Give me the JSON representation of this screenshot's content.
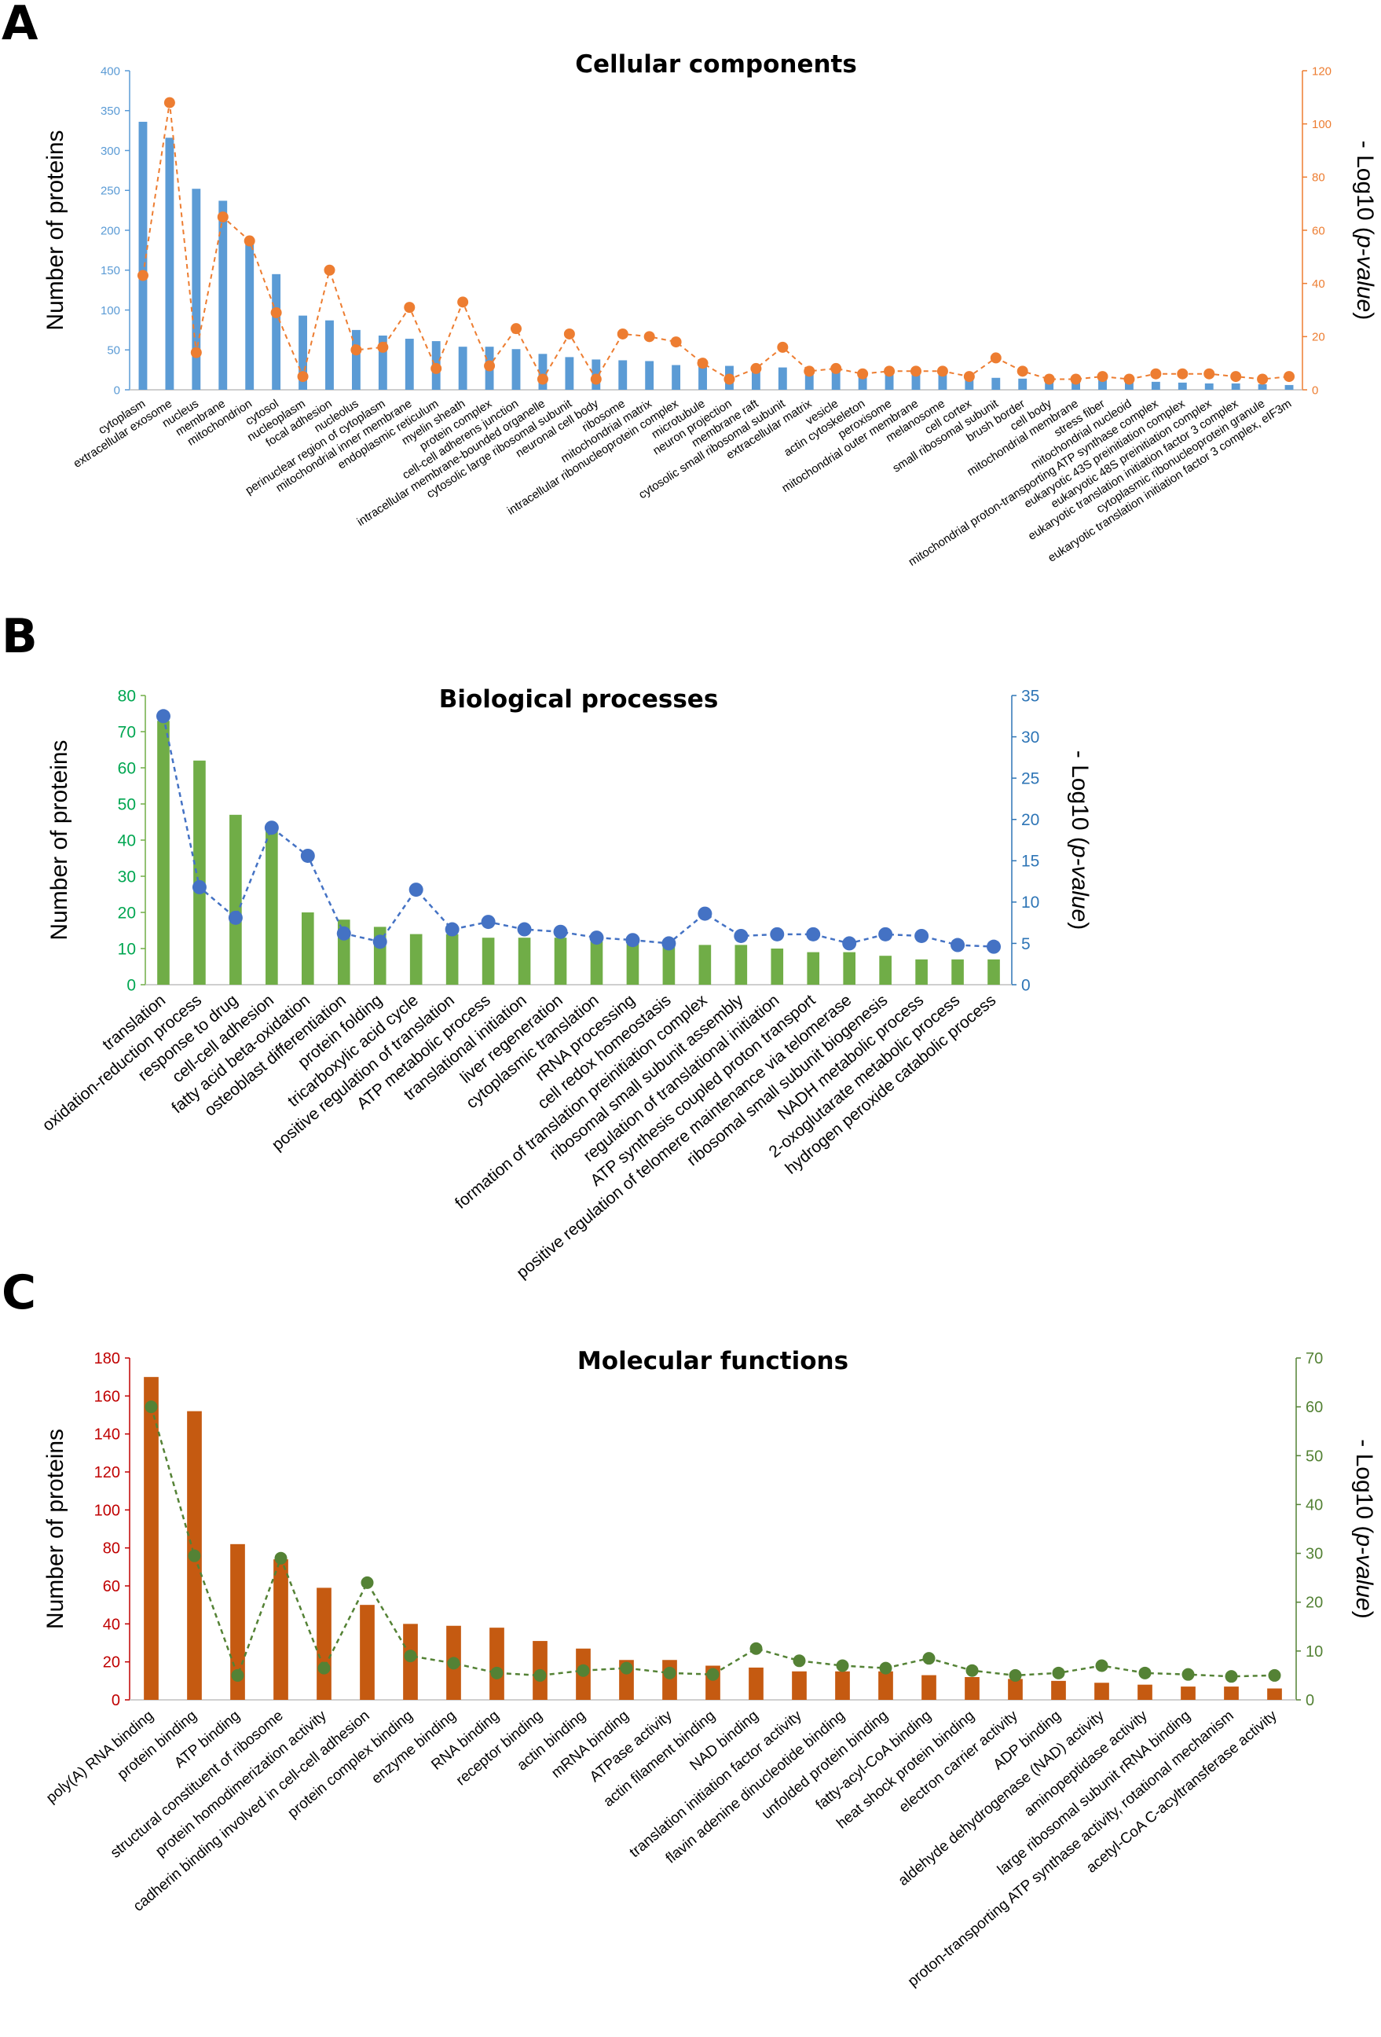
{
  "figure": {
    "panels": [
      {
        "letter": "A",
        "chart_index": 0,
        "colors": {
          "bar": "#5b9bd5",
          "line": "#ed7d31",
          "left_axis": "#5b9bd5",
          "right_axis": "#ed7d31",
          "left_tick": "#5b9bd5",
          "right_tick": "#ed7d31"
        }
      },
      {
        "letter": "B",
        "chart_index": 1,
        "colors": {
          "bar": "#70ad47",
          "line": "#4472c4",
          "left_axis": "#70ad47",
          "right_axis": "#2e75b6",
          "left_tick": "#00a651",
          "right_tick": "#2e75b6"
        }
      },
      {
        "letter": "C",
        "chart_index": 2,
        "colors": {
          "bar": "#c55a11",
          "line": "#548235",
          "left_axis": "#c00000",
          "right_axis": "#548235",
          "left_tick": "#c00000",
          "right_tick": "#548235"
        }
      }
    ]
  },
  "chart_data": [
    {
      "type": "bar",
      "title": "Cellular components",
      "ylabel": "Number of proteins",
      "y2label": "- Log10 (p-value)",
      "ylim": [
        0,
        400
      ],
      "yticks": [
        0,
        50,
        100,
        150,
        200,
        250,
        300,
        350,
        400
      ],
      "y2lim": [
        0,
        120
      ],
      "y2ticks": [
        0,
        20,
        40,
        60,
        80,
        100,
        120
      ],
      "categories": [
        "cytoplasm",
        "extracellular exosome",
        "nucleus",
        "membrane",
        "mitochondrion",
        "cytosol",
        "nucleoplasm",
        "focal adhesion",
        "nucleolus",
        "perinuclear region of cytoplasm",
        "mitochondrial inner membrane",
        "endoplasmic reticulum",
        "myelin sheath",
        "protein complex",
        "cell-cell adherens junction",
        "intracellular membrane-bounded organelle",
        "cytosolic large ribosomal subunit",
        "neuronal cell body",
        "ribosome",
        "mitochondrial matrix",
        "intracellular ribonucleoprotein complex",
        "microtubule",
        "neuron projection",
        "membrane raft",
        "cytosolic small ribosomal subunit",
        "extracellular matrix",
        "vesicle",
        "actin cytoskeleton",
        "peroxisome",
        "mitochondrial outer membrane",
        "melanosome",
        "cell cortex",
        "small ribosomal subunit",
        "brush border",
        "cell body",
        "mitochondrial membrane",
        "stress fiber",
        "mitochondrial nucleoid",
        "mitochondrial proton-transporting ATP synthase complex",
        "eukaryotic 43S preinitiation complex",
        "eukaryotic 48S preinitiation complex",
        "eukaryotic translation initiation factor 3 complex",
        "cytoplasmic ribonucleoprotein granule",
        "eukaryotic translation initiation factor 3 complex, eIF3m"
      ],
      "series": [
        {
          "name": "Number of proteins",
          "axis": "left",
          "kind": "bar",
          "values": [
            336,
            316,
            252,
            237,
            186,
            145,
            93,
            87,
            75,
            68,
            64,
            61,
            54,
            54,
            51,
            45,
            41,
            38,
            37,
            36,
            31,
            30,
            30,
            29,
            28,
            24,
            23,
            22,
            21,
            20,
            19,
            17,
            15,
            14,
            13,
            13,
            13,
            11,
            10,
            9,
            8,
            8,
            7,
            6
          ]
        },
        {
          "name": "-Log10 (p-value)",
          "axis": "right",
          "kind": "line",
          "values": [
            43,
            108,
            14,
            65,
            56,
            29,
            5,
            45,
            15,
            16,
            31,
            8,
            33,
            9,
            23,
            4,
            21,
            4,
            21,
            20,
            18,
            10,
            4,
            8,
            16,
            7,
            8,
            6,
            7,
            7,
            7,
            5,
            12,
            7,
            4,
            4,
            5,
            4,
            6,
            6,
            6,
            5,
            4,
            5
          ]
        }
      ]
    },
    {
      "type": "bar",
      "title": "Biological processes",
      "ylabel": "Number of proteins",
      "y2label": "- Log10 (p-value)",
      "ylim": [
        0,
        80
      ],
      "yticks": [
        0,
        10,
        20,
        30,
        40,
        50,
        60,
        70,
        80
      ],
      "y2lim": [
        0,
        35
      ],
      "y2ticks": [
        0,
        5,
        10,
        15,
        20,
        25,
        30,
        35
      ],
      "categories": [
        "translation",
        "oxidation-reduction process",
        "response to drug",
        "cell-cell adhesion",
        "fatty acid beta-oxidation",
        "osteoblast differentiation",
        "protein folding",
        "tricarboxylic acid cycle",
        "positive regulation of translation",
        "ATP metabolic process",
        "translational initiation",
        "liver regeneration",
        "cytoplasmic translation",
        "rRNA processing",
        "cell redox homeostasis",
        "formation of translation preinitiation complex",
        "ribosomal small subunit assembly",
        "regulation of translational initiation",
        "ATP synthesis coupled proton transport",
        "positive regulation of telomere maintenance via telomerase",
        "ribosomal small subunit biogenesis",
        "NADH metabolic process",
        "2-oxoglutarate metabolic process",
        "hydrogen peroxide catabolic process"
      ],
      "series": [
        {
          "name": "Number of proteins",
          "axis": "left",
          "kind": "bar",
          "values": [
            73,
            62,
            47,
            43,
            20,
            18,
            16,
            14,
            14,
            13,
            13,
            13,
            12,
            12,
            11,
            11,
            11,
            10,
            9,
            9,
            8,
            7,
            7,
            7
          ]
        },
        {
          "name": "-Log10 (p-value)",
          "axis": "right",
          "kind": "line",
          "values": [
            32.5,
            11.8,
            8.1,
            19,
            15.6,
            6.2,
            5.2,
            11.5,
            6.7,
            7.6,
            6.7,
            6.4,
            5.7,
            5.4,
            5,
            8.6,
            5.9,
            6.1,
            6.1,
            5,
            6.1,
            5.9,
            4.8,
            4.6
          ]
        }
      ]
    },
    {
      "type": "bar",
      "title": "Molecular functions",
      "ylabel": "Number of proteins",
      "y2label": "- Log10 (p-value)",
      "ylim": [
        0,
        180
      ],
      "yticks": [
        0,
        20,
        40,
        60,
        80,
        100,
        120,
        140,
        160,
        180
      ],
      "y2lim": [
        0,
        70
      ],
      "y2ticks": [
        0,
        10,
        20,
        30,
        40,
        50,
        60,
        70
      ],
      "categories": [
        "poly(A) RNA binding",
        "protein binding",
        "ATP binding",
        "structural constituent of ribosome",
        "protein homodimerization activity",
        "cadherin binding involved in cell-cell adhesion",
        "protein complex binding",
        "enzyme binding",
        "RNA binding",
        "receptor binding",
        "actin binding",
        "mRNA binding",
        "ATPase activity",
        "actin filament binding",
        "NAD binding",
        "translation initiation factor activity",
        "flavin adenine dinucleotide binding",
        "unfolded protein binding",
        "fatty-acyl-CoA binding",
        "heat shock protein binding",
        "electron carrier activity",
        "ADP binding",
        "aldehyde dehydrogenase (NAD) activity",
        "aminopeptidase activity",
        "large ribosomal subunit rRNA binding",
        "proton-transporting ATP synthase activity, rotational mechanism",
        "acetyl-CoA C-acyltransferase activity"
      ],
      "series": [
        {
          "name": "Number of proteins",
          "axis": "left",
          "kind": "bar",
          "values": [
            170,
            152,
            82,
            74,
            59,
            50,
            40,
            39,
            38,
            31,
            27,
            21,
            21,
            18,
            17,
            15,
            15,
            15,
            13,
            12,
            11,
            10,
            9,
            8,
            7,
            7,
            6
          ]
        },
        {
          "name": "-Log10 (p-value)",
          "axis": "right",
          "kind": "line",
          "values": [
            60,
            29.5,
            5,
            29,
            6.5,
            24,
            9,
            7.5,
            5.5,
            5,
            6,
            6.5,
            5.5,
            5.2,
            10.5,
            8,
            7,
            6.5,
            8.5,
            6,
            5,
            5.5,
            7,
            5.5,
            5.2,
            4.8,
            5
          ]
        }
      ]
    }
  ]
}
